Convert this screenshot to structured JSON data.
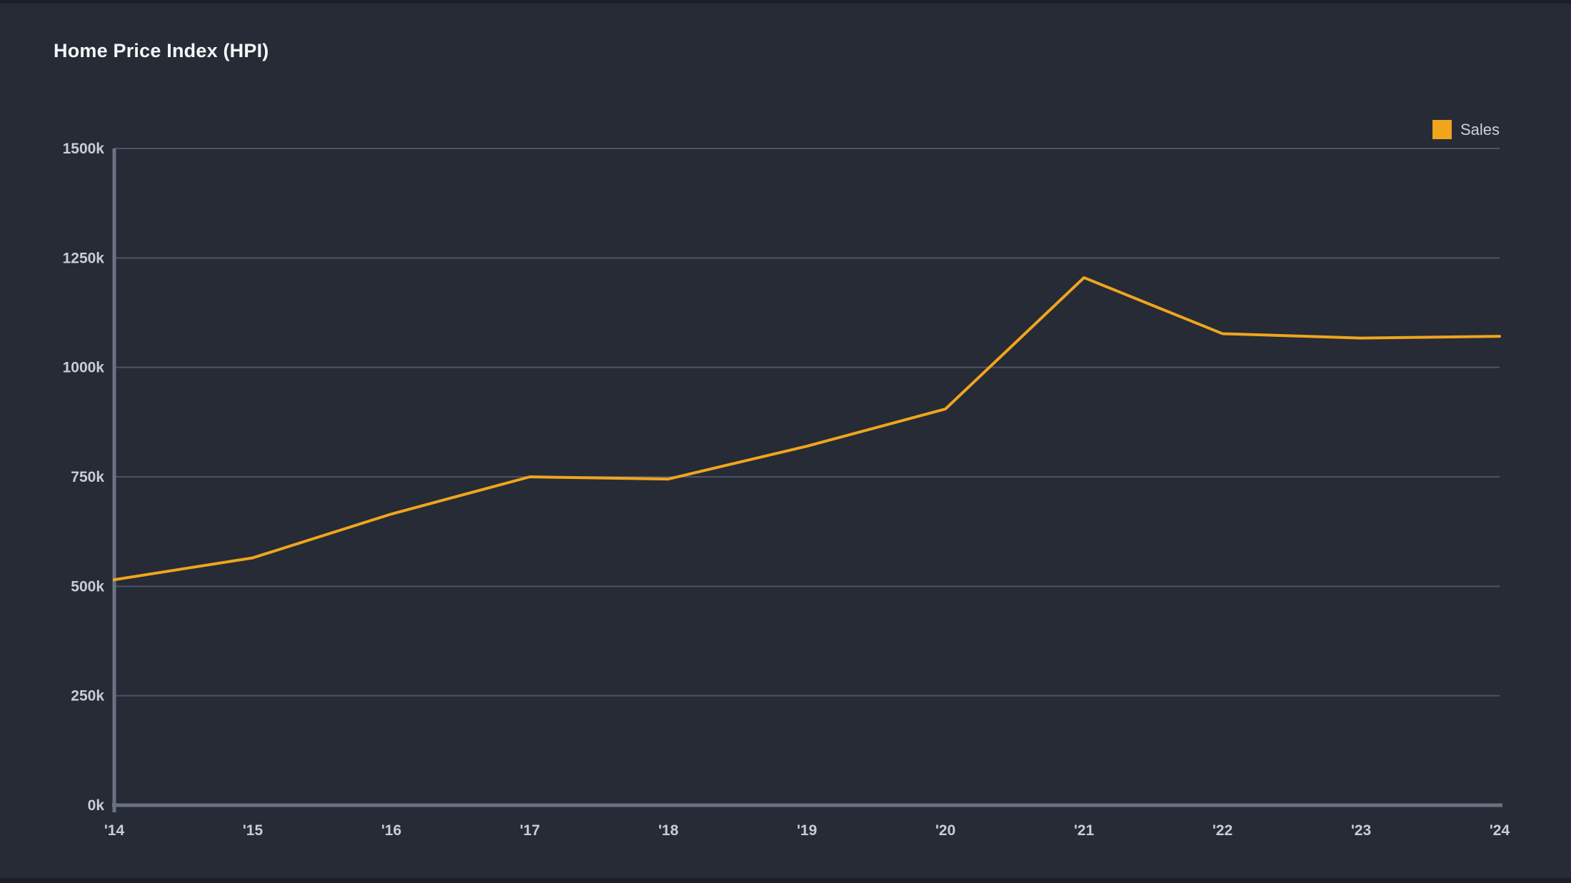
{
  "page": {
    "background_color": "#262b36",
    "edge_strip_color": "#1b1f27"
  },
  "header": {
    "title": "Home Price Index (HPI)"
  },
  "legend": {
    "items": [
      {
        "label": "Sales",
        "color": "#f0a51d"
      }
    ]
  },
  "chart_data": {
    "type": "line",
    "title": "Home Price Index (HPI)",
    "categories": [
      "'14",
      "'15",
      "'16",
      "'17",
      "'18",
      "'19",
      "'20",
      "'21",
      "'22",
      "'23",
      "'24"
    ],
    "series": [
      {
        "name": "Sales",
        "color": "#f0a51d",
        "values_k": [
          515,
          565,
          665,
          750,
          745,
          820,
          905,
          1205,
          1077,
          1067,
          1071
        ]
      }
    ],
    "y_unit": "k",
    "ylim_k": [
      0,
      1500
    ],
    "ytick_step_k": 250,
    "ytick_labels": [
      "0k",
      "250k",
      "500k",
      "750k",
      "1000k",
      "1250k",
      "1500k"
    ],
    "grid": "horizontal",
    "legend_position": "top-right",
    "style": {
      "grid_color": "#4c5464",
      "axis_color": "#6a7282",
      "tick_text_color": "#c8cdd6",
      "title_color": "#f4f6f9",
      "line_width": 4
    }
  }
}
